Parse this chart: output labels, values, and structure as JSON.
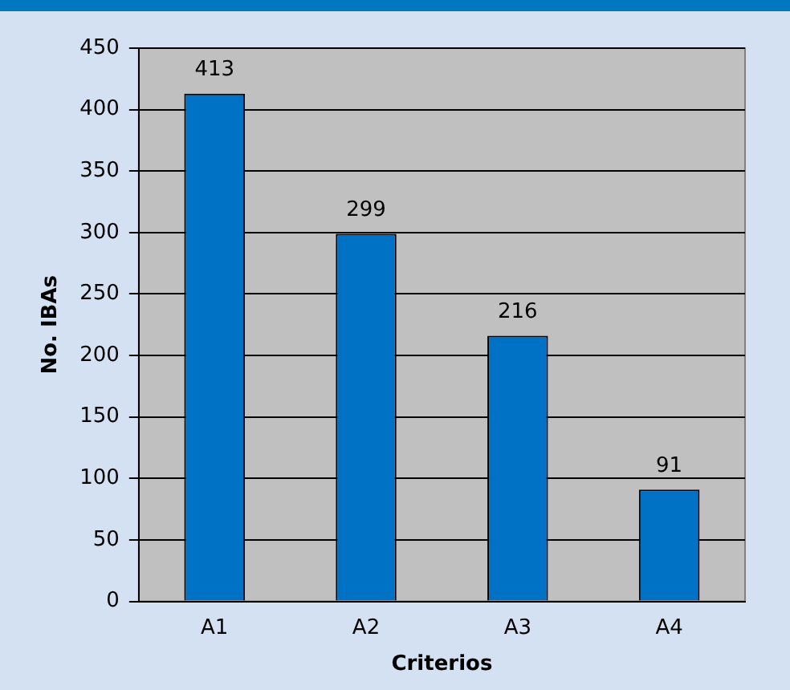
{
  "chart_data": {
    "type": "bar",
    "xlabel": "Criterios",
    "ylabel": "No. IBAs",
    "categories": [
      "A1",
      "A2",
      "A3",
      "A4"
    ],
    "values": [
      413,
      299,
      216,
      91
    ],
    "color": "#0072c6",
    "ylim": [
      0,
      450
    ],
    "yticks": [
      0,
      50,
      100,
      150,
      200,
      250,
      300,
      350,
      400,
      450
    ],
    "grid": "y",
    "data_labels": true,
    "legend": false
  }
}
